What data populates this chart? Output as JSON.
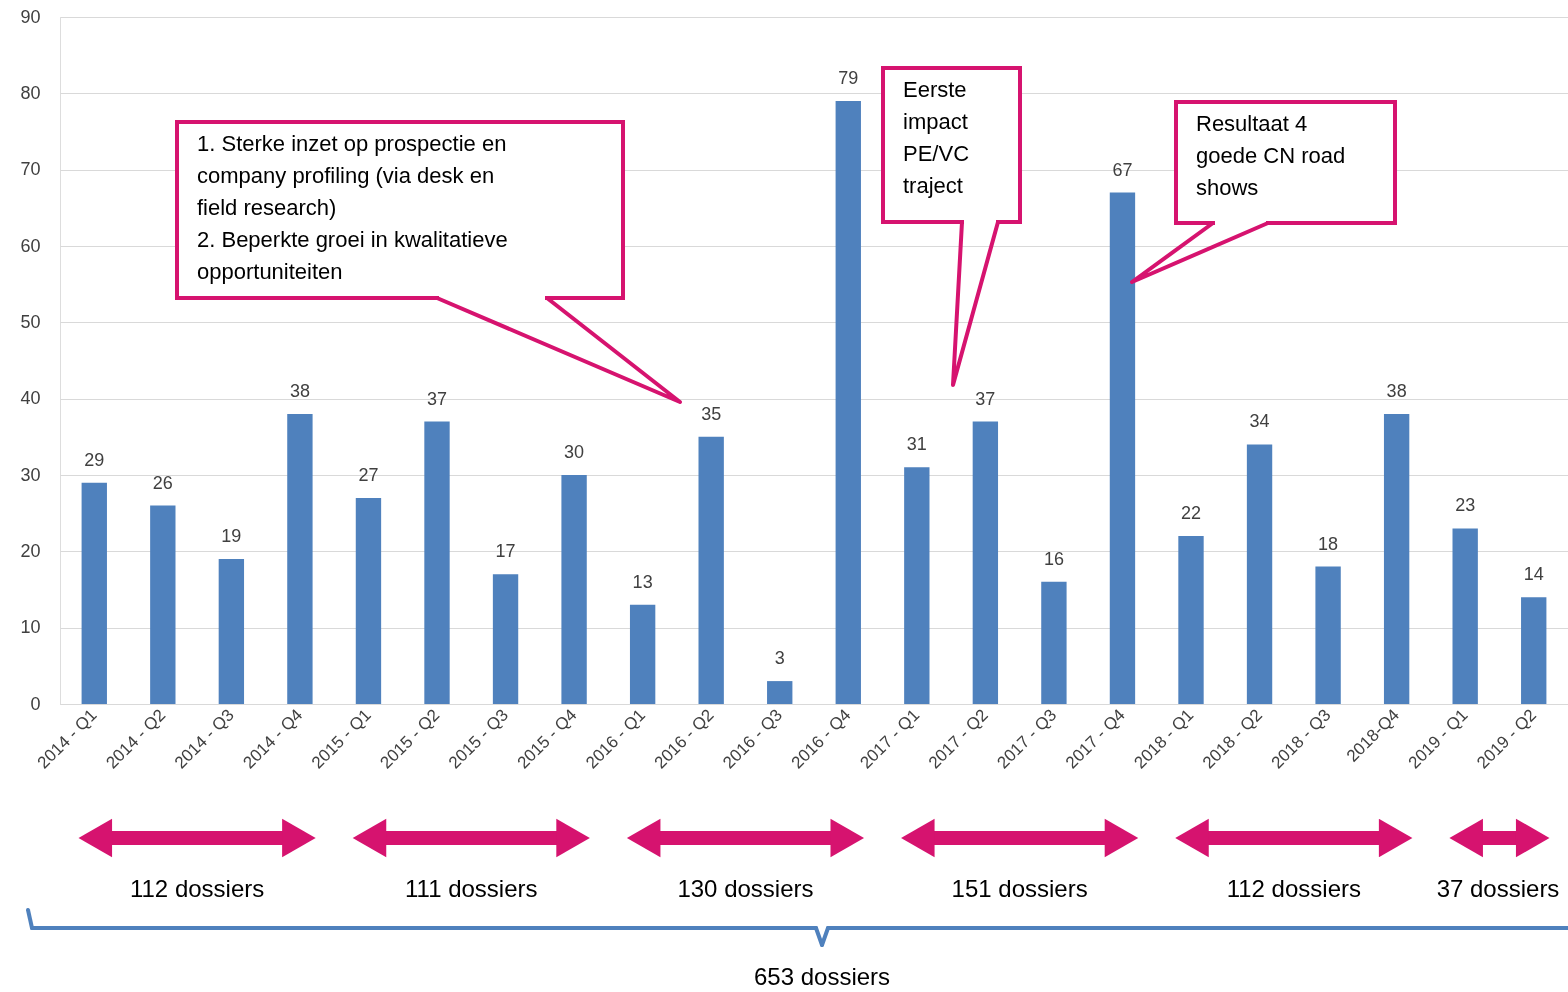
{
  "chart_data": {
    "type": "bar",
    "categories": [
      "2014 - Q1",
      "2014 - Q2",
      "2014 - Q3",
      "2014 - Q4",
      "2015 - Q1",
      "2015 - Q2",
      "2015 - Q3",
      "2015 - Q4",
      "2016 - Q1",
      "2016 - Q2",
      "2016 - Q3",
      "2016 - Q4",
      "2017 - Q1",
      "2017 - Q2",
      "2017 - Q3",
      "2017 - Q4",
      "2018 - Q1",
      "2018 - Q2",
      "2018 - Q3",
      "2018-Q4",
      "2019 - Q1",
      "2019 - Q2"
    ],
    "values": [
      29,
      26,
      19,
      38,
      27,
      37,
      17,
      30,
      13,
      35,
      3,
      79,
      31,
      37,
      16,
      67,
      22,
      34,
      18,
      38,
      23,
      14
    ],
    "color": "#4f81bd",
    "ylim": [
      0,
      90
    ],
    "yticks": [
      0,
      10,
      20,
      30,
      40,
      50,
      60,
      70,
      80,
      90
    ],
    "grid": "y",
    "data_labels": true,
    "annotations": [
      "1.    Sterke inzet op prospectie en\n       company profiling (via desk en\n       field research)\n2.    Beperkte groei in kwalitatieve\n       opportuniteiten",
      "Eerste\nimpact\nPE/VC\ntraject",
      "Resultaat 4\ngoede CN road\nshows",
      "112 dossiers",
      "111 dossiers",
      "130 dossiers",
      "151 dossiers",
      "112 dossiers",
      "37 dossiers",
      "653 dossiers"
    ]
  }
}
